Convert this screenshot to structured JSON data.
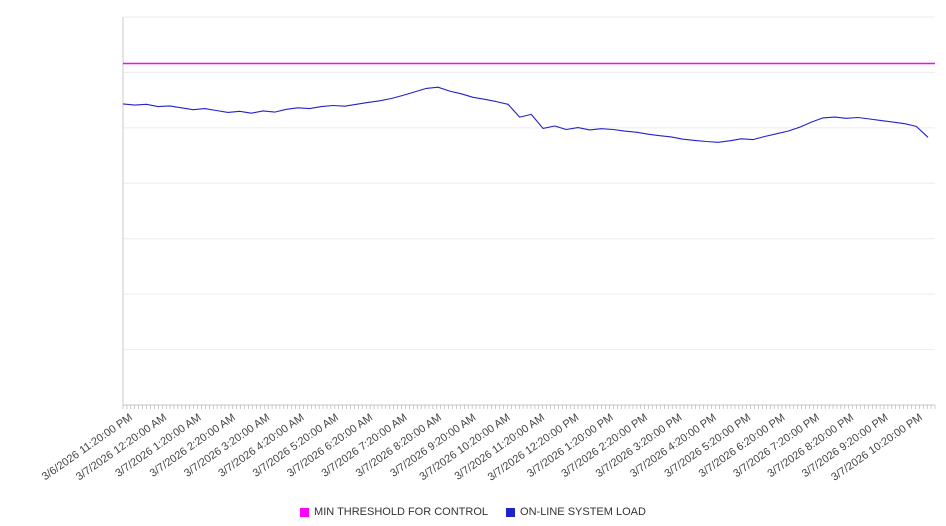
{
  "chart_data": {
    "type": "line",
    "title": "",
    "xlabel": "",
    "ylabel": "",
    "ylim": [
      0,
      100
    ],
    "grid": "horizontal",
    "legend_position": "bottom",
    "x_labels": [
      "3/6/2026 11:20:00 PM",
      "3/7/2026 12:20:00 AM",
      "3/7/2026 1:20:00 AM",
      "3/7/2026 2:20:00 AM",
      "3/7/2026 3:20:00 AM",
      "3/7/2026 4:20:00 AM",
      "3/7/2026 5:20:00 AM",
      "3/7/2026 6:20:00 AM",
      "3/7/2026 7:20:00 AM",
      "3/7/2026 8:20:00 AM",
      "3/7/2026 9:20:00 AM",
      "3/7/2026 10:20:00 AM",
      "3/7/2026 11:20:00 AM",
      "3/7/2026 12:20:00 PM",
      "3/7/2026 1:20:00 PM",
      "3/7/2026 2:20:00 PM",
      "3/7/2026 3:20:00 PM",
      "3/7/2026 4:20:00 PM",
      "3/7/2026 5:20:00 PM",
      "3/7/2026 6:20:00 PM",
      "3/7/2026 7:20:00 PM",
      "3/7/2026 8:20:00 PM",
      "3/7/2026 9:20:00 PM",
      "3/7/2026 10:20:00 PM"
    ],
    "points_per_hour": 3,
    "series": [
      {
        "name": "MIN THRESHOLD FOR CONTROL",
        "type": "threshold",
        "color": "#ff00ff",
        "value": 88
      },
      {
        "name": "ON-LINE SYSTEM LOAD",
        "type": "line",
        "color": "#2222cc",
        "values": [
          77.6,
          77.3,
          77.5,
          76.9,
          77.1,
          76.6,
          76.1,
          76.4,
          75.9,
          75.4,
          75.7,
          75.2,
          75.8,
          75.5,
          76.2,
          76.6,
          76.4,
          76.9,
          77.2,
          77.0,
          77.5,
          78.0,
          78.4,
          79.0,
          79.8,
          80.7,
          81.6,
          81.9,
          80.9,
          80.2,
          79.3,
          78.8,
          78.2,
          77.5,
          74.2,
          74.9,
          71.3,
          71.9,
          71.0,
          71.5,
          70.9,
          71.2,
          71.0,
          70.6,
          70.3,
          69.8,
          69.4,
          69.1,
          68.5,
          68.2,
          67.9,
          67.7,
          68.1,
          68.6,
          68.4,
          69.2,
          69.9,
          70.6,
          71.6,
          72.9,
          74.0,
          74.2,
          73.9,
          74.1,
          73.7,
          73.3,
          72.9,
          72.5,
          71.8,
          69.0
        ]
      }
    ],
    "style": {
      "gridline_color": "#ebebeb",
      "axis_color": "#c9c9c9",
      "tick_color": "#999999",
      "label_color": "#444444"
    }
  },
  "legend": {
    "items": [
      {
        "label": "MIN THRESHOLD FOR CONTROL",
        "color": "#ff00ff"
      },
      {
        "label": "ON-LINE SYSTEM LOAD",
        "color": "#2222cc"
      }
    ]
  }
}
